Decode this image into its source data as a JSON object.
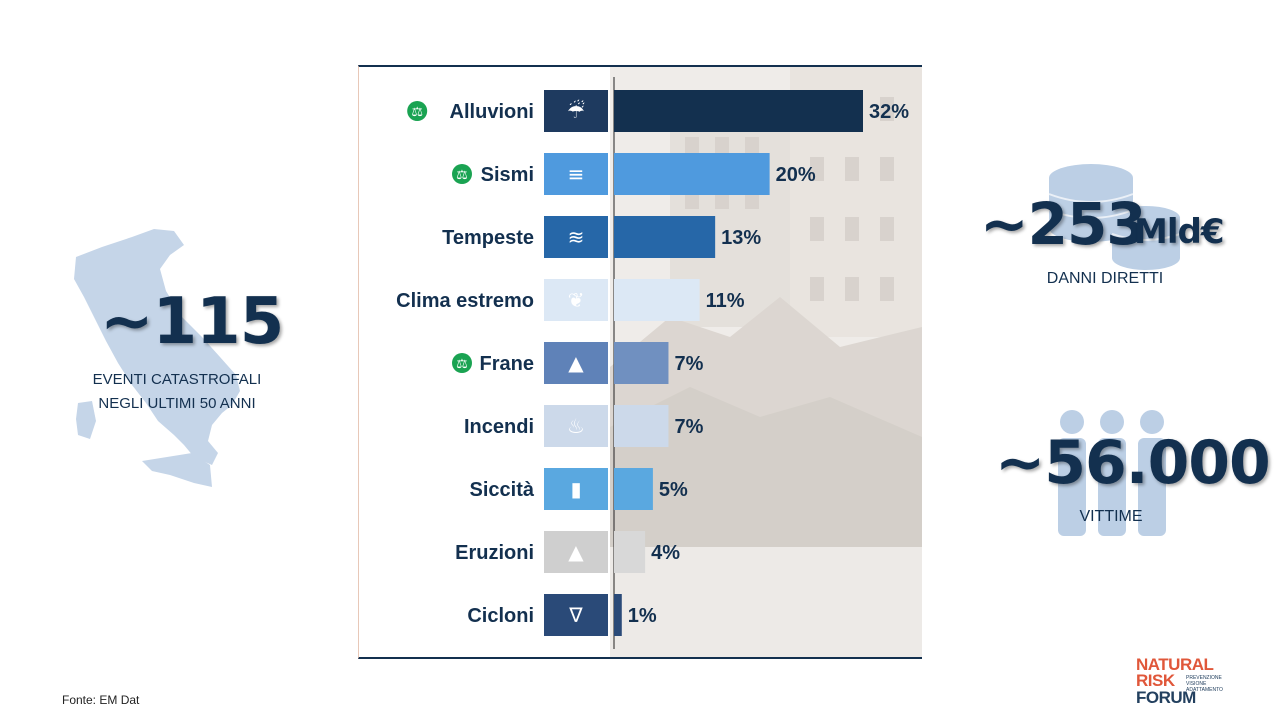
{
  "left_stat": {
    "value": "~115",
    "caption_line1": "EVENTI CATASTROFALI",
    "caption_line2": "NEGLI ULTIMI 50 ANNI"
  },
  "right_stat_damage": {
    "value": "~253",
    "unit": "Mld€",
    "caption": "DANNI DIRETTI"
  },
  "right_stat_victims": {
    "value": "~56.000",
    "caption": "VITTIME"
  },
  "source": "Fonte: EM Dat",
  "logo": {
    "line1": "NATURAL",
    "line2": "RISK",
    "line3": "FORUM",
    "tag1": "PREVENZIONE",
    "tag2": "VISIONE",
    "tag3": "ADATTAMENTO"
  },
  "colors": {
    "navy": "#13304f",
    "marker_green": "#1aa352"
  },
  "chart_data": {
    "type": "bar",
    "orientation": "horizontal",
    "categories": [
      "Alluvioni",
      "Sismi",
      "Tempeste",
      "Clima estremo",
      "Frane",
      "Incendi",
      "Siccità",
      "Eruzioni",
      "Cicloni"
    ],
    "values": [
      32,
      20,
      13,
      11,
      7,
      7,
      5,
      4,
      1
    ],
    "labels": [
      "32%",
      "20%",
      "13%",
      "11%",
      "7%",
      "7%",
      "5%",
      "4%",
      "1%"
    ],
    "colors": [
      "#13304f",
      "#4f9ade",
      "#2667a8",
      "#dce8f5",
      "#7090c0",
      "#ccd9ea",
      "#5aa8e0",
      "#d8d8d8",
      "#2a4a78"
    ],
    "icons": [
      "rain-cloud-icon",
      "bridge-icon",
      "wind-icon",
      "dry-tree-icon",
      "landslide-icon",
      "fire-icon",
      "thermometer-icon",
      "volcano-icon",
      "tornado-icon"
    ],
    "icon_colors": [
      "#1e3a5f",
      "#4f9ade",
      "#2667a8",
      "#dce8f5",
      "#5f82b8",
      "#ccd9ea",
      "#5aa8e0",
      "#cfcfcf",
      "#2a4a78"
    ],
    "marked": [
      true,
      true,
      false,
      false,
      true,
      false,
      false,
      false,
      false
    ],
    "xlim": [
      0,
      32
    ]
  }
}
